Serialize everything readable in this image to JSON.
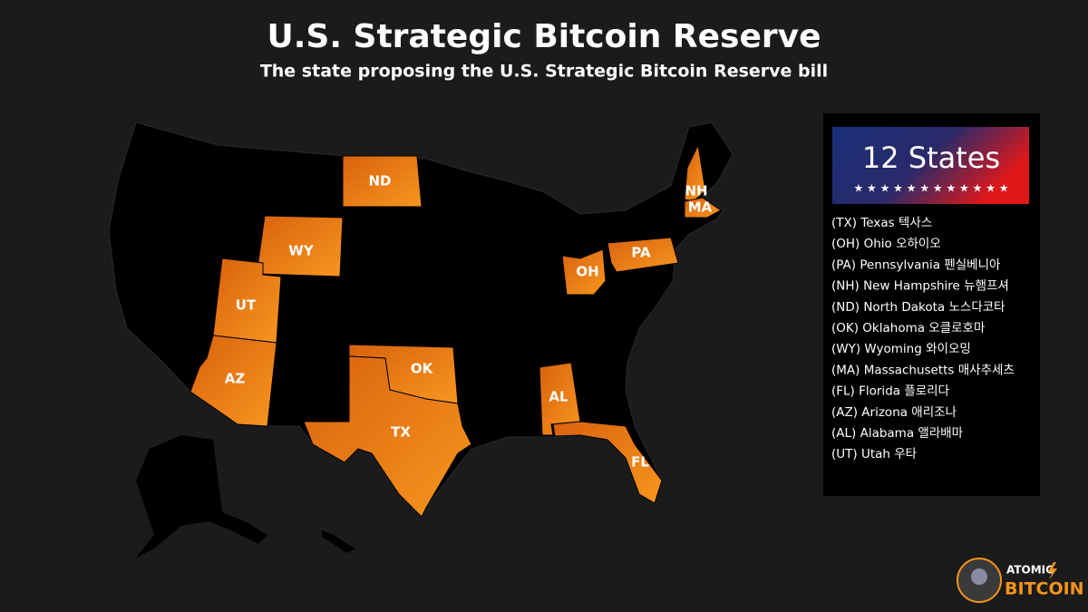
{
  "header": {
    "title": "U.S. Strategic Bitcoin Reserve",
    "subtitle": "The state proposing the U.S. Strategic Bitcoin Reserve bill"
  },
  "map": {
    "states": [
      "ND",
      "WY",
      "UT",
      "AZ",
      "OK",
      "TX",
      "AL",
      "FL",
      "OH",
      "PA",
      "NH",
      "MA"
    ]
  },
  "legend": {
    "count": "12 States",
    "stars": "★ ★ ★ ★ ★ ★ ★ ★ ★ ★ ★ ★",
    "items": [
      "(TX) Texas 텍사스",
      "(OH) Ohio 오하이오",
      "(PA) Pennsylvania 펜실베니아",
      "(NH) New Hampshire 뉴햄프셔",
      "(ND) North Dakota 노스다코타",
      "(OK) Oklahoma 오클로호마",
      "(WY) Wyoming 와이오밍",
      "(MA) Massachusetts 매사추세츠",
      "(FL) Florida 플로리다",
      "(AZ) Arizona 애리조나",
      "(AL) Alabama 앨라배마",
      "(UT) Utah 우타"
    ]
  },
  "logo": {
    "line1": "ATOMIC",
    "line2": "BITCOIN"
  }
}
